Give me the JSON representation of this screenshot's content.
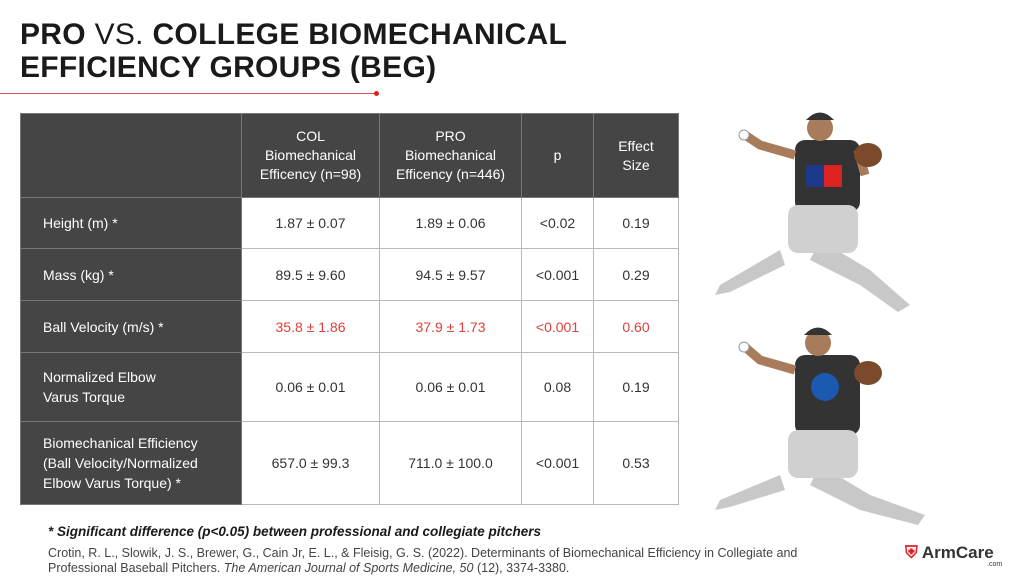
{
  "header": {
    "title": [
      "PRO",
      "VS.",
      "COLLEGE BIOMECHANICAL",
      "EFFICIENCY GROUPS (BEG)"
    ]
  },
  "table": {
    "highlight_color": "#e0403a",
    "columns": [
      [
        "COL",
        "Biomechanical",
        "Efficency (n=98)"
      ],
      [
        "PRO",
        "Biomechanical",
        "Efficency (n=446)"
      ],
      [
        "p"
      ],
      [
        "Effect",
        "Size"
      ]
    ],
    "rows": [
      {
        "label": [
          "Height (m) *"
        ],
        "cells": [
          "1.87 ± 0.07",
          "1.89 ± 0.06",
          "<0.02",
          "0.19"
        ],
        "highlighted": false
      },
      {
        "label": [
          "Mass (kg) *"
        ],
        "cells": [
          "89.5 ± 9.60",
          "94.5 ± 9.57",
          "<0.001",
          "0.29"
        ],
        "highlighted": false
      },
      {
        "label": [
          "Ball Velocity (m/s) *"
        ],
        "cells": [
          "35.8 ± 1.86",
          "37.9 ± 1.73",
          "<0.001",
          "0.60"
        ],
        "highlighted": true
      },
      {
        "label": [
          "Normalized Elbow",
          "Varus Torque"
        ],
        "cells": [
          "0.06 ± 0.01",
          "0.06 ± 0.01",
          "0.08",
          "0.19"
        ],
        "highlighted": false
      },
      {
        "label": [
          "Biomechanical Efficiency",
          "(Ball Velocity/Normalized",
          "Elbow Varus Torque) *"
        ],
        "cells": [
          "657.0 ± 99.3",
          "711.0 ± 100.0",
          "<0.001",
          "0.53"
        ],
        "highlighted": false
      }
    ]
  },
  "footnote": "* Significant difference (p<0.05) between professional and collegiate pitchers",
  "citation": [
    "Crotin, R. L., Slowik, J. S., Brewer, G., Cain Jr, E. L., & Fleisig, G. S. (2022). Determinants of Biomechanical Efficiency in Collegiate and Professional Baseball Pitchers.",
    "The American Journal of Sports Medicine, 50",
    "(12), 3374-3380."
  ],
  "logo": {
    "name": "ArmCare",
    "domain": ".com"
  }
}
